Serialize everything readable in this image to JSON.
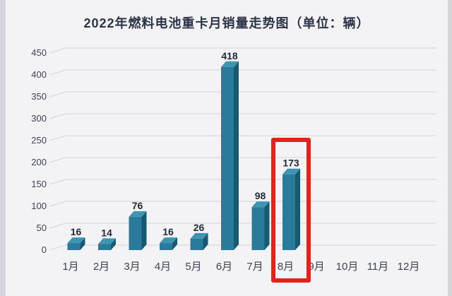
{
  "chart_data": {
    "type": "bar",
    "style": "3d-column",
    "title": "2022年燃料电池重卡月销量走势图（单位：辆）",
    "categories": [
      "1月",
      "2月",
      "3月",
      "4月",
      "5月",
      "6月",
      "7月",
      "8月",
      "9月",
      "10月",
      "11月",
      "12月"
    ],
    "values": [
      16,
      14,
      76,
      16,
      26,
      418,
      98,
      173,
      null,
      null,
      null,
      null
    ],
    "xlabel": "",
    "ylabel": "",
    "ylim": [
      0,
      450
    ],
    "ytick_step": 50,
    "yticks": [
      0,
      50,
      100,
      150,
      200,
      250,
      300,
      350,
      400,
      450
    ],
    "grid": true,
    "legend": null,
    "highlight": {
      "category": "8月",
      "value": 173,
      "shape": "red-box-outline"
    },
    "colors": {
      "bar_front": "#2a7a9c",
      "bar_top": "#3e94b3",
      "bar_side": "#18596f",
      "gridline": "#d9d9de",
      "value_label": "#222938",
      "axis_label": "#3d4356",
      "title": "#2e3448",
      "highlight_box": "#e3231a",
      "background": "#f2f2f5"
    }
  }
}
